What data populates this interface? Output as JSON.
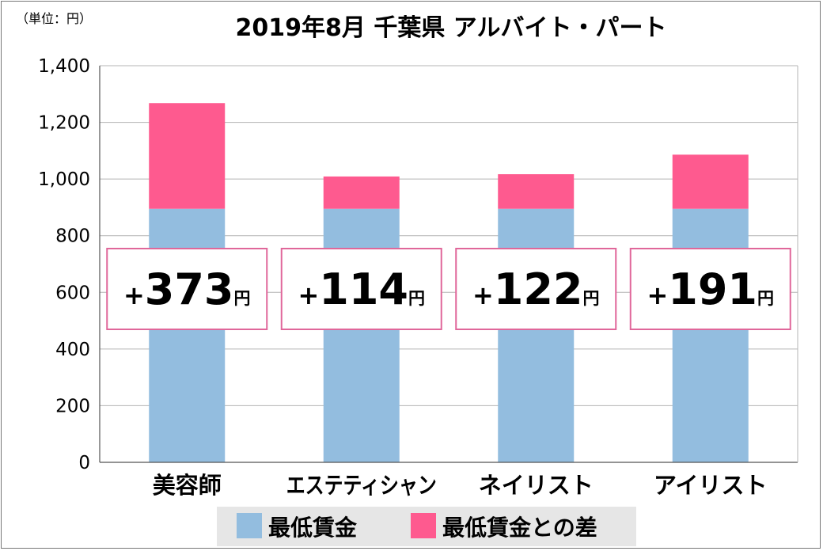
{
  "unit_label": "（単位：円）",
  "chart_data": {
    "type": "bar",
    "stacked": true,
    "title": "2019年8月 千葉県 アルバイト・パート",
    "categories": [
      "美容師",
      "エステティシャン",
      "ネイリスト",
      "アイリスト"
    ],
    "series": [
      {
        "name": "最低賃金",
        "color": "#93bddf",
        "values": [
          895,
          895,
          895,
          895
        ]
      },
      {
        "name": "最低賃金との差",
        "color": "#fe5a8f",
        "values": [
          373,
          114,
          122,
          191
        ]
      }
    ],
    "ylim": [
      0,
      1400
    ],
    "yticks": [
      "0",
      "200",
      "400",
      "600",
      "800",
      "1,000",
      "1,200",
      "1,400"
    ],
    "grid": true,
    "legend": "bottom",
    "annotations": [
      {
        "sign": "+",
        "value": "373",
        "unit": "円"
      },
      {
        "sign": "+",
        "value": "114",
        "unit": "円"
      },
      {
        "sign": "+",
        "value": "122",
        "unit": "円"
      },
      {
        "sign": "+",
        "value": "191",
        "unit": "円"
      }
    ]
  }
}
